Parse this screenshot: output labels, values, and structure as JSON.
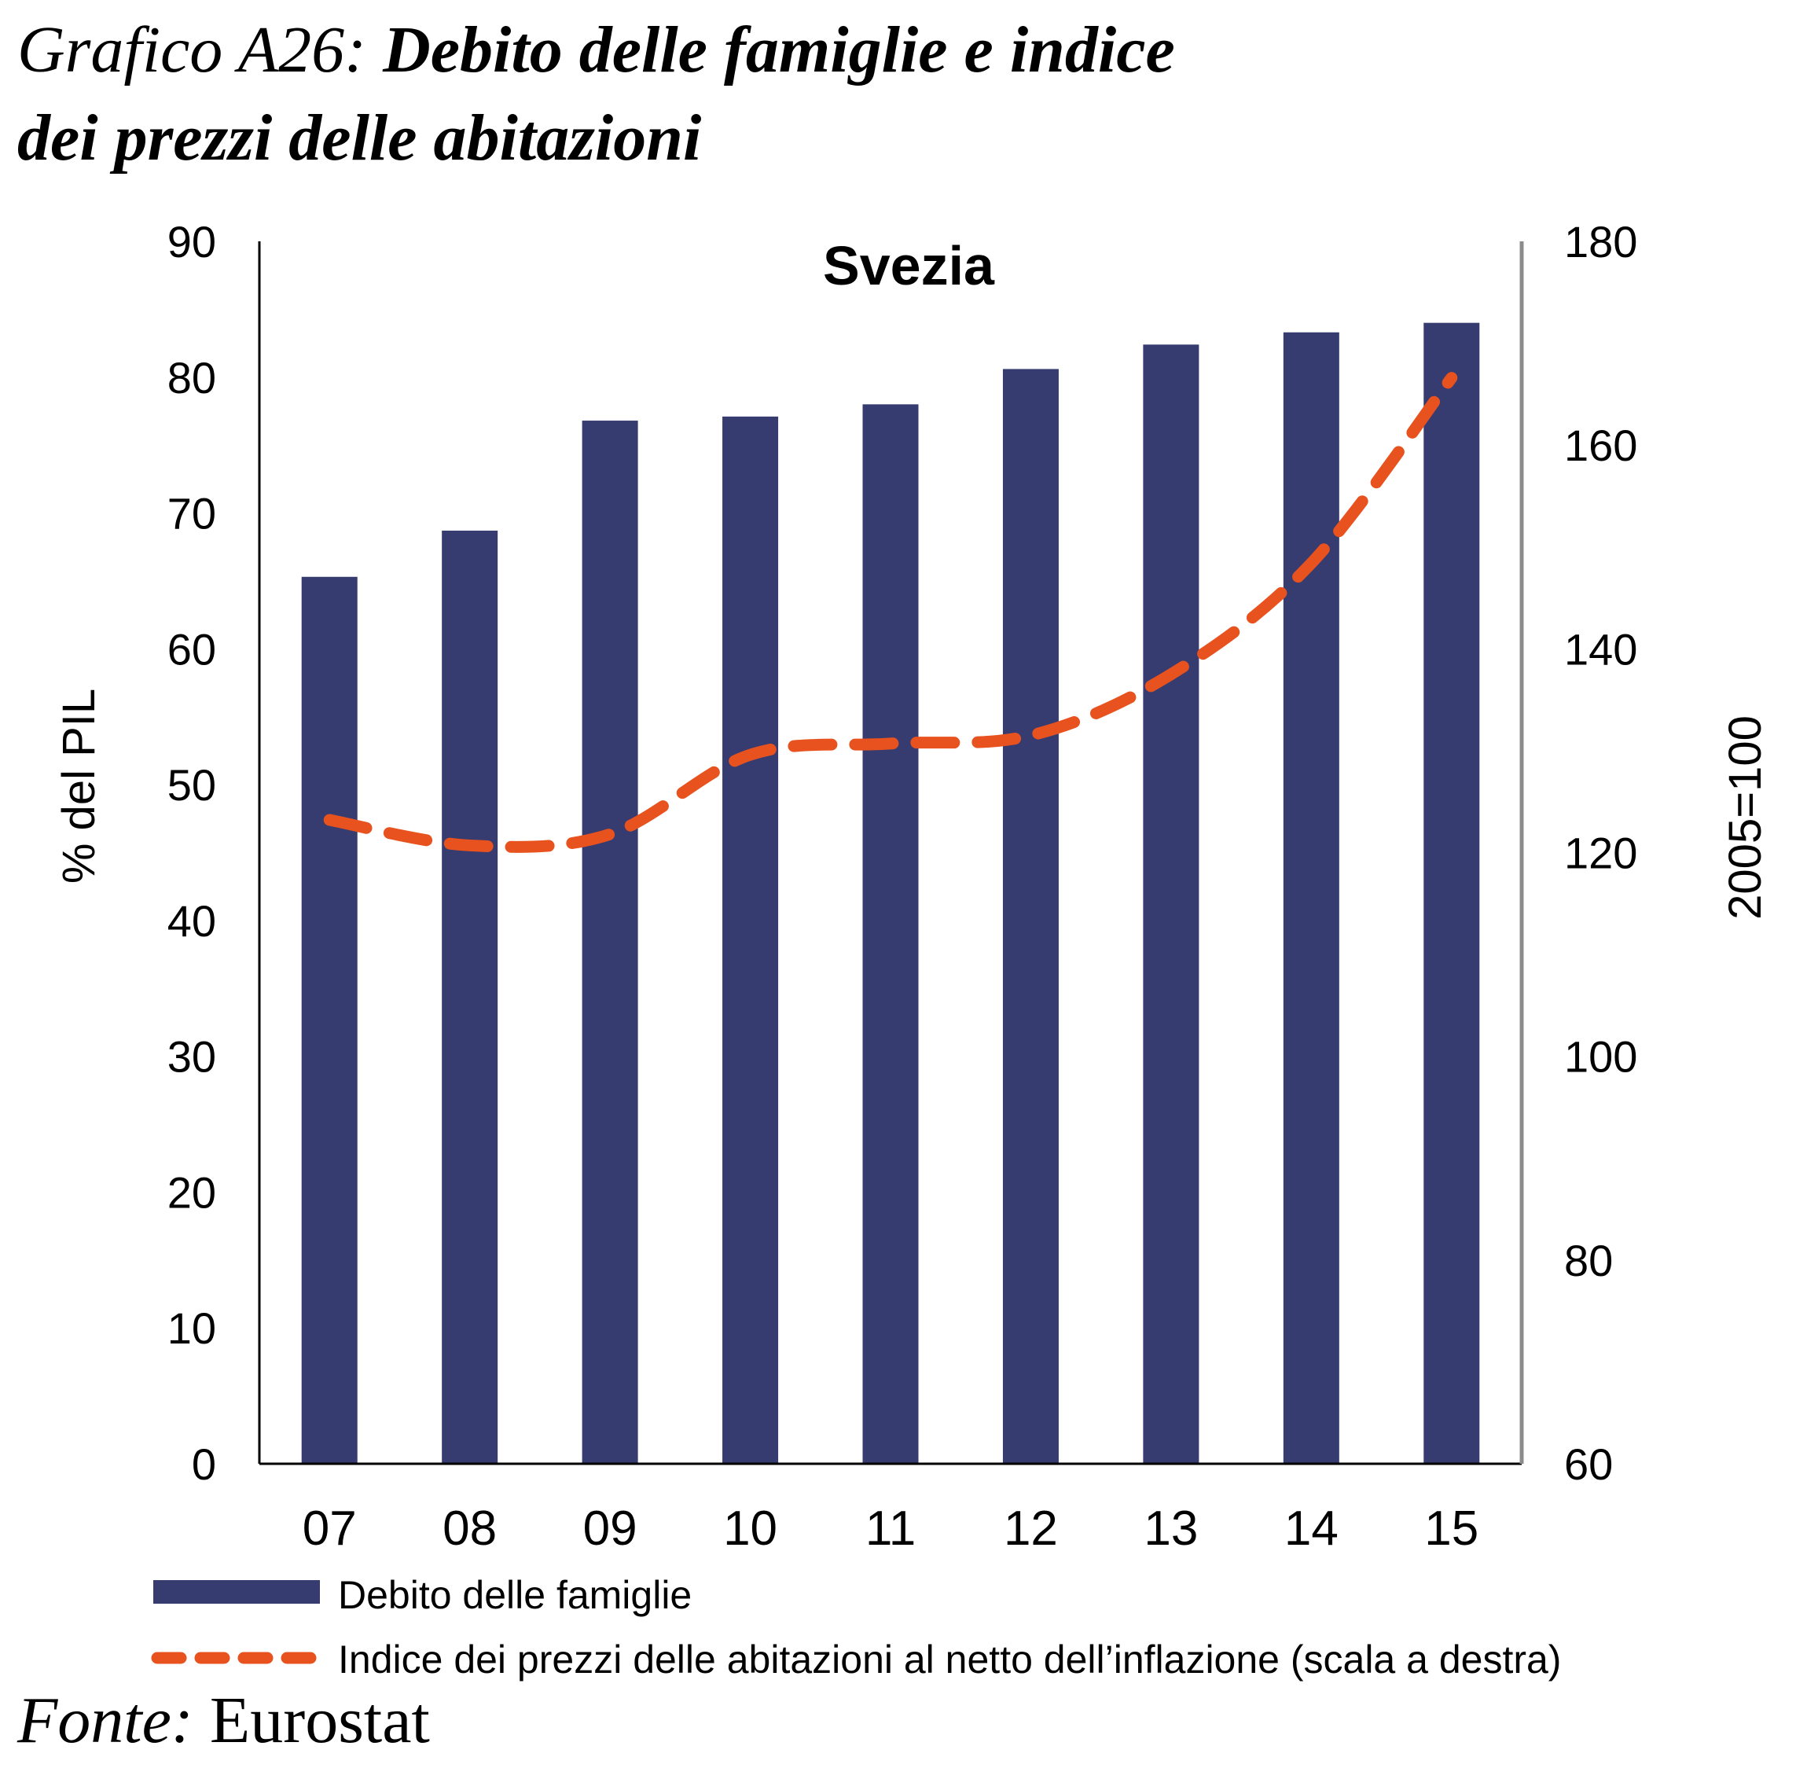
{
  "header": {
    "prefix": "Grafico A26:",
    "title_line1": "Debito delle famiglie e indice",
    "title_line2": "dei prezzi delle abitazioni"
  },
  "footer": {
    "source_label": "Fonte:",
    "source_value": "Eurostat"
  },
  "colors": {
    "bar": "#363b70",
    "line": "#e8521e",
    "axis": "#000000",
    "right_axis": "#8c8c8c"
  },
  "chart_data": {
    "type": "bar+line",
    "title": "Svezia",
    "categories": [
      "07",
      "08",
      "09",
      "10",
      "11",
      "12",
      "13",
      "14",
      "15"
    ],
    "series": [
      {
        "name": "Debito delle famiglie",
        "type": "bar",
        "axis": "left",
        "values": [
          65.3,
          68.7,
          76.8,
          77.1,
          78.0,
          80.6,
          82.4,
          83.3,
          84.0
        ]
      },
      {
        "name": "Indice dei prezzi delle abitazioni al netto dell’inflazione (scala a destra)",
        "type": "line",
        "style": "dashed",
        "axis": "right",
        "values": [
          123.2,
          120.7,
          121.8,
          129.6,
          130.7,
          131.5,
          137.5,
          148.4,
          166.6
        ]
      }
    ],
    "ylabel": "% del PIL",
    "ylabel_right": "2005=100",
    "ylim": [
      0,
      90
    ],
    "yticks": [
      0,
      10,
      20,
      30,
      40,
      50,
      60,
      70,
      80,
      90
    ],
    "ylim_right": [
      60,
      180
    ],
    "yticks_right": [
      60,
      80,
      100,
      120,
      140,
      160,
      180
    ],
    "grid": false,
    "legend_position": "bottom"
  }
}
